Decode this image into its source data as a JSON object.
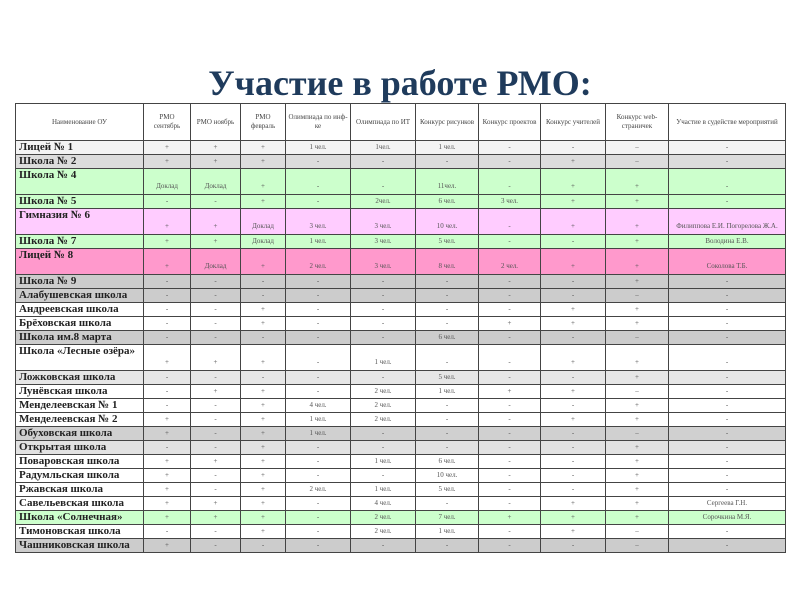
{
  "title": "Участие в работе РМО:",
  "columns": [
    "Наименование ОУ",
    "РМО сентябрь",
    "РМО ноябрь",
    "РМО февраль",
    "Олимпиада по инф-ке",
    "Олимпиада по ИТ",
    "Конкурс рисунков",
    "Конкурс проектов",
    "Конкурс учителей",
    "Конкурс web-страничек",
    "Участие в судействе мероприятий"
  ],
  "rows": [
    {
      "bg": "#f3f3f3",
      "cells": [
        "Лицей № 1",
        "+",
        "+",
        "+",
        "1 чел.",
        "1чел.",
        "1 чел.",
        "-",
        "-",
        "–",
        "-"
      ]
    },
    {
      "bg": "#dcdcdc",
      "cells": [
        "Школа № 2",
        "+",
        "+",
        "+",
        "-",
        "-",
        "-",
        "-",
        "+",
        "–",
        "-"
      ]
    },
    {
      "bg": "#ccffcc",
      "tall": true,
      "cells": [
        "Школа № 4",
        "Доклад",
        "Доклад",
        "+",
        "-",
        "-",
        "11чел.",
        "-",
        "+",
        "+",
        "-"
      ]
    },
    {
      "bg": "#ccffcc",
      "cells": [
        "Школа № 5",
        "-",
        "-",
        "+",
        "-",
        "2чел.",
        "6 чел.",
        "3 чел.",
        "+",
        "+",
        "-"
      ]
    },
    {
      "bg": "#ffccff",
      "tall": true,
      "cells": [
        "Гимназия № 6",
        "+",
        "+",
        "Доклад",
        "3 чел.",
        "3 чел.",
        "10 чел.",
        "-",
        "+",
        "+",
        "Филиппова Е.И. Погорелова Ж.А."
      ]
    },
    {
      "bg": "#ccffcc",
      "cells": [
        "Школа № 7",
        "+",
        "+",
        "Доклад",
        "1 чел.",
        "3 чел.",
        "5 чел.",
        "-",
        "-",
        "+",
        "Володина Е.В."
      ]
    },
    {
      "bg": "#ff99cc",
      "tall": true,
      "cells": [
        "Лицей № 8",
        "+",
        "Доклад",
        "+",
        "2 чел.",
        "3 чел.",
        "8 чел.",
        "2 чел.",
        "+",
        "+",
        "Соколова Т.Б."
      ]
    },
    {
      "bg": "#cccccc",
      "cells": [
        "Школа № 9",
        "-",
        "-",
        "-",
        "-",
        "-",
        "-",
        "-",
        "-",
        "+",
        "-"
      ]
    },
    {
      "bg": "#cccccc",
      "cells": [
        "Алабушевская школа",
        "-",
        "-",
        "-",
        "-",
        "-",
        "-",
        "-",
        "-",
        "–",
        "-"
      ]
    },
    {
      "bg": "#ffffff",
      "cells": [
        "Андреевская школа",
        "-",
        "-",
        "+",
        "-",
        "-",
        "-",
        "-",
        "+",
        "+",
        "-"
      ]
    },
    {
      "bg": "#ffffff",
      "cells": [
        "Брёховская школа",
        "-",
        "-",
        "+",
        "-",
        "-",
        "-",
        "+",
        "+",
        "+",
        "-"
      ]
    },
    {
      "bg": "#cccccc",
      "cells": [
        "Школа им.8 марта",
        "-",
        "-",
        "-",
        "-",
        "-",
        "6 чел.",
        "-",
        "-",
        "–",
        "-"
      ]
    },
    {
      "bg": "#ffffff",
      "tall": true,
      "cells": [
        "Школа «Лесные озёра»",
        "+",
        "+",
        "+",
        "-",
        "1 чел.",
        "-",
        "-",
        "+",
        "+",
        "-"
      ]
    },
    {
      "bg": "#e6e6e6",
      "cells": [
        "Ложковская школа",
        "-",
        "-",
        "-",
        "-",
        "-",
        "5 чел.",
        "-",
        "-",
        "+",
        "-"
      ]
    },
    {
      "bg": "#ffffff",
      "cells": [
        "Лунёвская школа",
        "-",
        "+",
        "+",
        "-",
        "2 чел.",
        "1 чел.",
        "+",
        "+",
        "–",
        "-"
      ]
    },
    {
      "bg": "#ffffff",
      "cells": [
        "Менделеевская № 1",
        "-",
        "-",
        "+",
        "4 чел.",
        "2 чел.",
        "-",
        "-",
        "-",
        "+",
        "-"
      ]
    },
    {
      "bg": "#ffffff",
      "cells": [
        "Менделеевская № 2",
        "+",
        "-",
        "+",
        "1 чел.",
        "2 чел.",
        "-",
        "-",
        "+",
        "+",
        "-"
      ]
    },
    {
      "bg": "#d0d0d0",
      "cells": [
        "Обуховская школа",
        "+",
        "-",
        "+",
        "1 чел.",
        "-",
        "-",
        "-",
        "-",
        "–",
        "-"
      ]
    },
    {
      "bg": "#e2e2e2",
      "cells": [
        "Открытая школа",
        "-",
        "-",
        "+",
        "-",
        "-",
        "-",
        "-",
        "-",
        "+",
        "-"
      ]
    },
    {
      "bg": "#ffffff",
      "cells": [
        "Поваровская школа",
        "+",
        "+",
        "+",
        "-",
        "1 чел.",
        "6 чел.",
        "-",
        "-",
        "+",
        "-"
      ]
    },
    {
      "bg": "#ffffff",
      "cells": [
        "Радумльская школа",
        "+",
        "-",
        "+",
        "-",
        "-",
        "10 чел.",
        "-",
        "-",
        "+",
        "-"
      ]
    },
    {
      "bg": "#ffffff",
      "cells": [
        "Ржавская школа",
        "+",
        "-",
        "+",
        "2 чел.",
        "1 чел.",
        "5 чел.",
        "-",
        "-",
        "+",
        "-"
      ]
    },
    {
      "bg": "#ffffff",
      "cells": [
        "Савельевская школа",
        "+",
        "+",
        "+",
        "-",
        "4 чел.",
        "-",
        "-",
        "+",
        "+",
        "Сергеева Г.Н."
      ]
    },
    {
      "bg": "#ccffcc",
      "cells": [
        "Школа «Солнечная»",
        "+",
        "+",
        "+",
        "-",
        "2 чел.",
        "7 чел.",
        "+",
        "+",
        "+",
        "Сорочкина М.Я."
      ]
    },
    {
      "bg": "#ffffff",
      "cells": [
        "Тимоновская школа",
        "-",
        "-",
        "+",
        "-",
        "2 чел.",
        "1 чел.",
        "-",
        "+",
        "–",
        "-"
      ]
    },
    {
      "bg": "#cccccc",
      "cells": [
        "Чашниковская школа",
        "+",
        "-",
        "-",
        "-",
        "-",
        "-",
        "-",
        "-",
        "–",
        "-"
      ]
    }
  ]
}
